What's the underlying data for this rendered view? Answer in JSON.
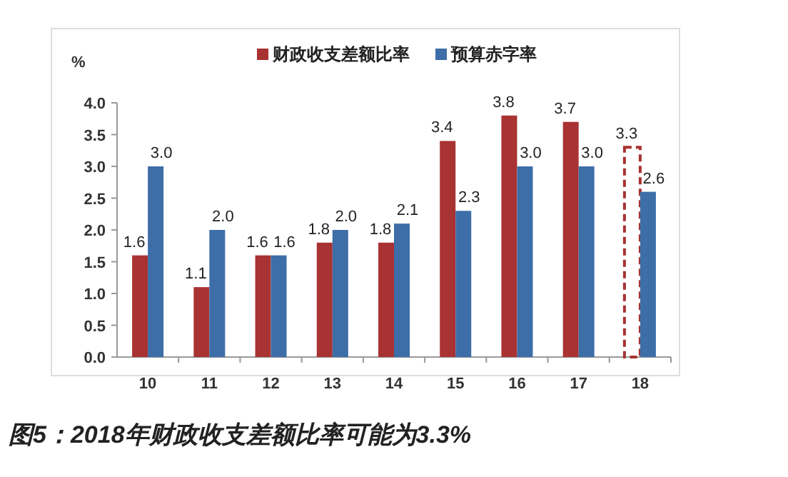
{
  "chart_data": {
    "type": "bar",
    "ylabel": "%",
    "categories": [
      "10",
      "11",
      "12",
      "13",
      "14",
      "15",
      "16",
      "17",
      "18"
    ],
    "series": [
      {
        "name": "财政收支差额比率",
        "color": "#a93232",
        "values": [
          1.6,
          1.1,
          1.6,
          1.8,
          1.8,
          3.4,
          3.8,
          3.7,
          3.3
        ],
        "value_labels": [
          "1.6",
          "1.1",
          "1.6",
          "1.8",
          "1.8",
          "3.4",
          "3.8",
          "3.7",
          "3.3"
        ],
        "line_style": [
          "solid",
          "solid",
          "solid",
          "solid",
          "solid",
          "solid",
          "solid",
          "solid",
          "dashed"
        ]
      },
      {
        "name": "预算赤字率",
        "color": "#3d6ea8",
        "values": [
          3.0,
          2.0,
          1.6,
          2.0,
          2.1,
          2.3,
          3.0,
          3.0,
          2.6
        ],
        "value_labels": [
          "3.0",
          "2.0",
          "1.6",
          "2.0",
          "2.1",
          "2.3",
          "3.0",
          "3.0",
          "2.6"
        ]
      }
    ],
    "ylim": [
      0,
      4
    ],
    "yticks": [
      {
        "value": 0,
        "label": "0.0"
      },
      {
        "value": 0.5,
        "label": "0.5"
      },
      {
        "value": 1,
        "label": "1.0"
      },
      {
        "value": 1.5,
        "label": "1.5"
      },
      {
        "value": 2,
        "label": "2.0"
      },
      {
        "value": 2.5,
        "label": "2.5"
      },
      {
        "value": 3,
        "label": "3.0"
      },
      {
        "value": 3.5,
        "label": "3.5"
      },
      {
        "value": 4,
        "label": "4.0"
      }
    ],
    "legend": "top",
    "grid": false,
    "annotations": [
      "图5：2018年财政收支差额比率可能为3.3%"
    ]
  }
}
